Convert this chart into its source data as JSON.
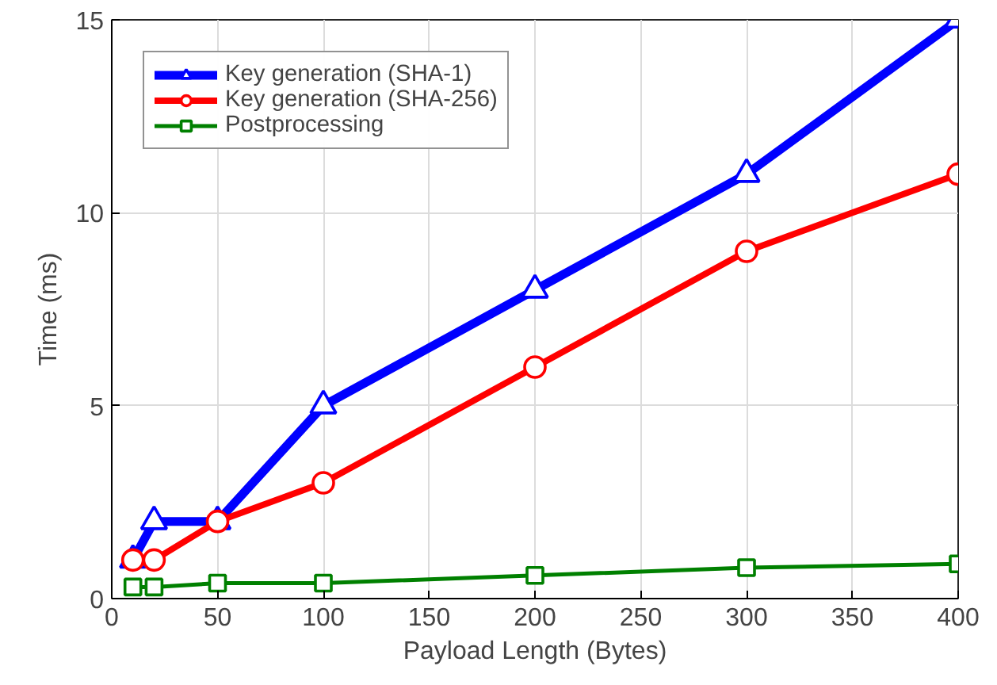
{
  "chart_data": {
    "type": "line",
    "xlabel": "Payload Length (Bytes)",
    "ylabel": "Time (ms)",
    "x": [
      10,
      20,
      50,
      100,
      200,
      300,
      400
    ],
    "series": [
      {
        "name": "Key generation (SHA-1)",
        "color": "#0000ff",
        "marker": "triangle",
        "values": [
          1,
          2,
          2,
          5,
          8,
          11,
          15
        ]
      },
      {
        "name": "Key generation (SHA-256)",
        "color": "#ff0000",
        "marker": "circle",
        "values": [
          1,
          1,
          2,
          3,
          6,
          9,
          11
        ]
      },
      {
        "name": "Postprocessing",
        "color": "#008000",
        "marker": "square",
        "values": [
          0.3,
          0.3,
          0.4,
          0.4,
          0.6,
          0.8,
          0.9
        ]
      }
    ],
    "xlim": [
      0,
      400
    ],
    "ylim": [
      0,
      15
    ],
    "xticks": [
      0,
      50,
      100,
      150,
      200,
      250,
      300,
      350,
      400
    ],
    "yticks": [
      0,
      5,
      10,
      15
    ],
    "grid": true,
    "legend": "top left",
    "line_style": "solid"
  }
}
